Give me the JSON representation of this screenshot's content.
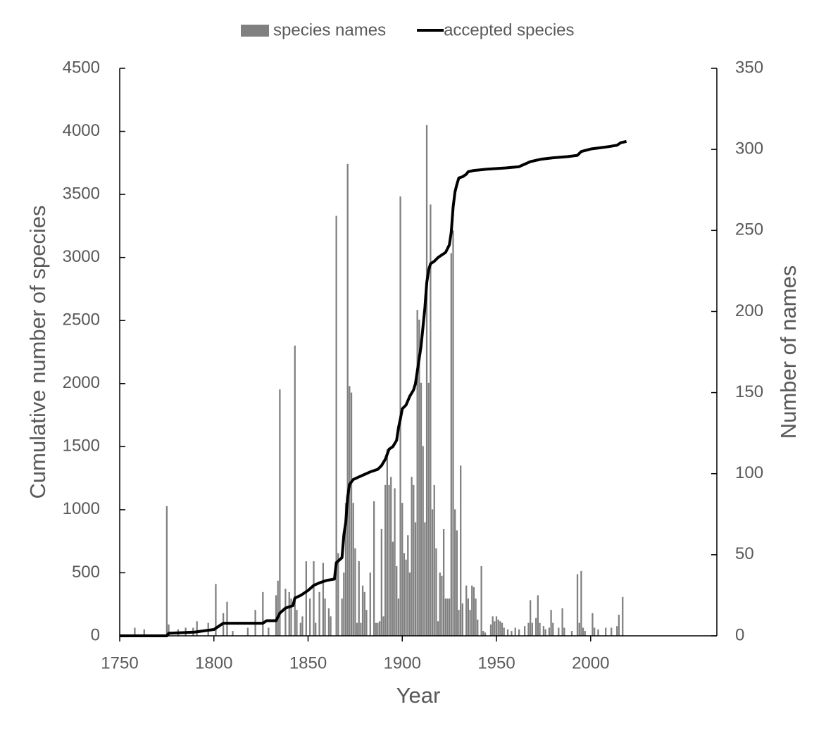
{
  "chart_data": {
    "type": "combo",
    "x_label": "Year",
    "y_label": "Cumulative number of species",
    "y2_label": "Number of names",
    "xlim": [
      1750,
      2067
    ],
    "xticks": [
      1750,
      1800,
      1850,
      1900,
      1950,
      2000
    ],
    "ylim": [
      0,
      4500
    ],
    "yticks": [
      0,
      500,
      1000,
      1500,
      2000,
      2500,
      3000,
      3500,
      4000,
      4500
    ],
    "y2lim": [
      0,
      350
    ],
    "y2ticks": [
      0,
      50,
      100,
      150,
      200,
      250,
      300,
      350
    ],
    "legend": "top",
    "series": [
      {
        "name": "species names",
        "type": "bar",
        "axis": "y2",
        "color": "#808080",
        "x": [
          1758,
          1763,
          1775,
          1776,
          1781,
          1785,
          1789,
          1791,
          1797,
          1801,
          1805,
          1807,
          1810,
          1818,
          1822,
          1826,
          1829,
          1833,
          1834,
          1835,
          1838,
          1840,
          1841,
          1843,
          1844,
          1846,
          1847,
          1849,
          1851,
          1853,
          1854,
          1856,
          1858,
          1859,
          1861,
          1862,
          1865,
          1866,
          1868,
          1869,
          1870,
          1871,
          1872,
          1873,
          1874,
          1875,
          1876,
          1877,
          1878,
          1879,
          1880,
          1881,
          1883,
          1885,
          1886,
          1887,
          1888,
          1889,
          1890,
          1891,
          1892,
          1893,
          1894,
          1895,
          1896,
          1897,
          1898,
          1899,
          1900,
          1901,
          1902,
          1903,
          1904,
          1905,
          1906,
          1907,
          1908,
          1909,
          1910,
          1911,
          1912,
          1913,
          1914,
          1915,
          1916,
          1917,
          1918,
          1919,
          1920,
          1921,
          1922,
          1923,
          1924,
          1925,
          1926,
          1927,
          1928,
          1929,
          1930,
          1931,
          1932,
          1934,
          1935,
          1936,
          1937,
          1938,
          1939,
          1940,
          1942,
          1943,
          1944,
          1947,
          1948,
          1949,
          1950,
          1951,
          1952,
          1953,
          1954,
          1956,
          1958,
          1960,
          1962,
          1965,
          1967,
          1968,
          1969,
          1971,
          1972,
          1973,
          1975,
          1976,
          1978,
          1979,
          1980,
          1983,
          1985,
          1986,
          1990,
          1993,
          1994,
          1995,
          1996,
          1997,
          2001,
          2002,
          2004,
          2008,
          2011,
          2014,
          2015,
          2017
        ],
        "values": [
          5,
          4,
          80,
          7,
          4,
          5,
          5,
          9,
          8,
          32,
          14,
          21,
          3,
          5,
          16,
          27,
          5,
          25,
          34,
          152,
          29,
          27,
          23,
          179,
          16,
          8,
          12,
          46,
          23,
          46,
          8,
          27,
          45,
          23,
          17,
          12,
          259,
          51,
          23,
          39,
          82,
          291,
          154,
          150,
          82,
          54,
          8,
          46,
          8,
          31,
          27,
          16,
          39,
          83,
          8,
          8,
          9,
          66,
          12,
          93,
          115,
          93,
          98,
          58,
          91,
          43,
          23,
          271,
          82,
          51,
          47,
          62,
          39,
          98,
          93,
          70,
          201,
          195,
          156,
          117,
          70,
          315,
          156,
          266,
          78,
          93,
          54,
          9,
          39,
          37,
          66,
          23,
          23,
          23,
          236,
          250,
          78,
          65,
          16,
          105,
          20,
          31,
          23,
          16,
          31,
          30,
          23,
          10,
          43,
          3,
          2,
          7,
          12,
          9,
          12,
          10,
          9,
          8,
          5,
          4,
          3,
          5,
          4,
          6,
          8,
          22,
          8,
          11,
          25,
          8,
          6,
          4,
          5,
          16,
          8,
          5,
          17,
          5,
          3,
          38,
          8,
          40,
          5,
          3,
          14,
          5,
          4,
          5,
          5,
          6,
          13,
          24
        ]
      },
      {
        "name": "accepted species",
        "type": "line",
        "color": "#000000",
        "x": [
          1750,
          1775,
          1776,
          1790,
          1800,
          1802,
          1805,
          1826,
          1828,
          1833,
          1835,
          1838,
          1842,
          1843,
          1846,
          1848,
          1850,
          1853,
          1856,
          1860,
          1864,
          1865,
          1868,
          1869,
          1870,
          1871,
          1872,
          1874,
          1877,
          1880,
          1883,
          1887,
          1889,
          1891,
          1893,
          1895,
          1897,
          1898,
          1899,
          1900,
          1902,
          1904,
          1906,
          1907,
          1908,
          1909,
          1910,
          1911,
          1912,
          1913,
          1914,
          1915,
          1917,
          1919,
          1921,
          1923,
          1925,
          1926,
          1927,
          1928,
          1929,
          1930,
          1932,
          1934,
          1935,
          1938,
          1945,
          1955,
          1962,
          1965,
          1968,
          1974,
          1980,
          1988,
          1993,
          1995,
          2000,
          2005,
          2010,
          2014,
          2016,
          2019
        ],
        "values": [
          0,
          0,
          20,
          30,
          50,
          70,
          100,
          100,
          120,
          120,
          180,
          220,
          240,
          300,
          320,
          340,
          360,
          400,
          420,
          440,
          450,
          580,
          620,
          800,
          900,
          1100,
          1200,
          1240,
          1260,
          1280,
          1300,
          1320,
          1350,
          1400,
          1480,
          1500,
          1550,
          1650,
          1720,
          1800,
          1830,
          1900,
          1950,
          2000,
          2100,
          2200,
          2300,
          2450,
          2600,
          2800,
          2900,
          2950,
          2970,
          3000,
          3020,
          3040,
          3100,
          3200,
          3400,
          3520,
          3580,
          3630,
          3640,
          3660,
          3680,
          3690,
          3700,
          3710,
          3720,
          3740,
          3760,
          3780,
          3790,
          3800,
          3810,
          3840,
          3860,
          3870,
          3880,
          3890,
          3910,
          3920
        ]
      }
    ]
  }
}
